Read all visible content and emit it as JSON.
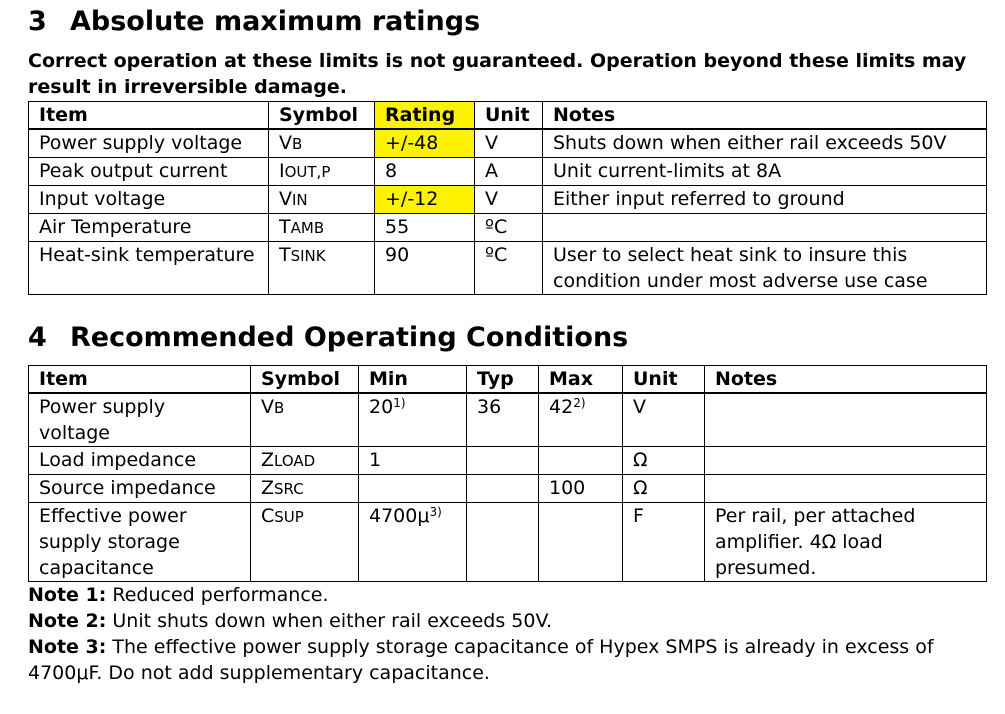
{
  "section3": {
    "number": "3",
    "title": "Absolute maximum ratings",
    "subtitle": "Correct operation at these limits is not guaranteed. Operation beyond these limits may result in irreversible damage.",
    "headers": [
      "Item",
      "Symbol",
      "Rating",
      "Unit",
      "Notes"
    ],
    "rows": [
      {
        "item": "Power supply voltage",
        "sym_cap": "V",
        "sym_sub": "B",
        "rating": "+/-48",
        "unit": "V",
        "notes": "Shuts down when either rail exceeds 50V"
      },
      {
        "item": "Peak output current",
        "sym_cap": "I",
        "sym_sub": "OUT,P",
        "rating": "8",
        "unit": "A",
        "notes": "Unit current-limits at 8A"
      },
      {
        "item": "Input voltage",
        "sym_cap": "V",
        "sym_sub": "IN",
        "rating": "+/-12",
        "unit": "V",
        "notes": "Either input referred to ground"
      },
      {
        "item": "Air Temperature",
        "sym_cap": "T",
        "sym_sub": "AMB",
        "rating": "55",
        "unit": "ºC",
        "notes": ""
      },
      {
        "item": "Heat-sink temperature",
        "sym_cap": "T",
        "sym_sub": "SINK",
        "rating": "90",
        "unit": "ºC",
        "notes": "User to select heat sink to insure this condition under most adverse use case"
      }
    ],
    "highlight_color": "#fff200"
  },
  "section4": {
    "number": "4",
    "title": "Recommended Operating Conditions",
    "headers": [
      "Item",
      "Symbol",
      "Min",
      "Typ",
      "Max",
      "Unit",
      "Notes"
    ],
    "rows": [
      {
        "item": "Power supply voltage",
        "sym_cap": "V",
        "sym_sub": "B",
        "min": "20",
        "min_sup": "1)",
        "typ": "36",
        "max": "42",
        "max_sup": "2)",
        "unit": "V",
        "notes": ""
      },
      {
        "item": "Load impedance",
        "sym_cap": "Z",
        "sym_sub": "LOAD",
        "min": "1",
        "min_sup": "",
        "typ": "",
        "max": "",
        "max_sup": "",
        "unit": "Ω",
        "notes": ""
      },
      {
        "item": "Source impedance",
        "sym_cap": "Z",
        "sym_sub": "SRC",
        "min": "",
        "min_sup": "",
        "typ": "",
        "max": "100",
        "max_sup": "",
        "unit": "Ω",
        "notes": ""
      },
      {
        "item": "Effective power supply storage capacitance",
        "sym_cap": "C",
        "sym_sub": "SUP",
        "min": "4700μ",
        "min_sup": "3)",
        "typ": "",
        "max": "",
        "max_sup": "",
        "unit": "F",
        "notes": "Per rail, per attached amplifier. 4Ω load presumed."
      }
    ]
  },
  "footnotes": [
    {
      "label": "Note 1:",
      "text": " Reduced performance."
    },
    {
      "label": "Note 2:",
      "text": " Unit shuts down when either rail exceeds 50V."
    },
    {
      "label": "Note 3:",
      "text": " The effective power supply storage capacitance of Hypex SMPS is already in excess of 4700μF. Do not add supplementary capacitance."
    }
  ]
}
